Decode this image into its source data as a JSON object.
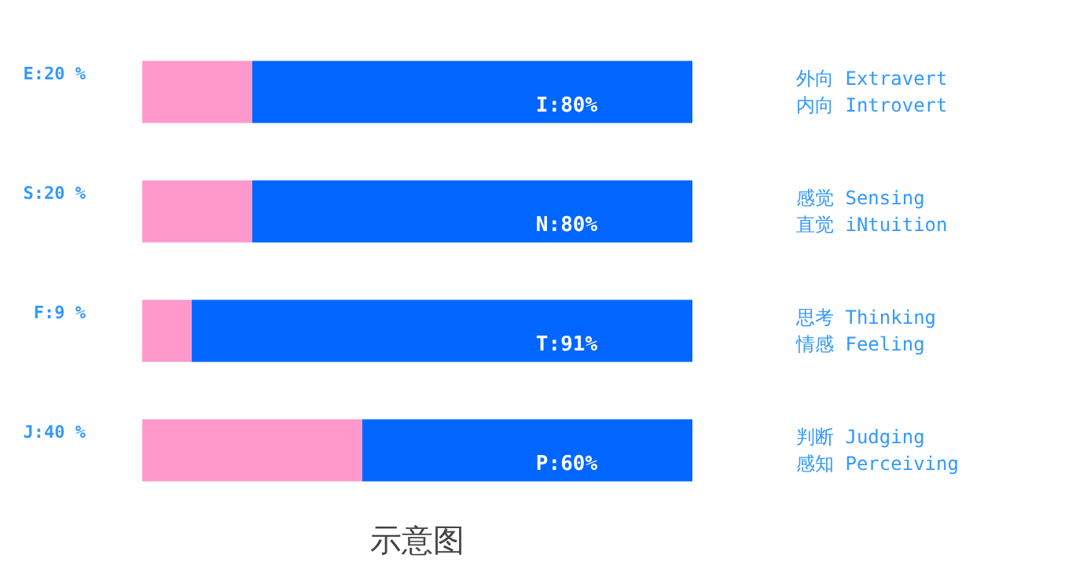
{
  "chart_data": {
    "type": "bar",
    "orientation": "horizontal",
    "stacked": true,
    "title": "示意图",
    "categories": [
      "外向 Extravert\n内向 Introvert",
      "感觉 Sensing\n直觉 iNtuition",
      "思考 Thinking\n情感 Feeling",
      "判断 Judging\n感知 Perceiving"
    ],
    "series": [
      {
        "color": "#ff99cc",
        "values": [
          20,
          20,
          9,
          40
        ],
        "value_labels": [
          "E:20 %",
          "S:20 %",
          "F:9 %",
          "J:40 %"
        ]
      },
      {
        "color": "#0066ff",
        "values": [
          80,
          80,
          91,
          60
        ],
        "value_labels": [
          "I:80%",
          "N:80%",
          "T:91%",
          "P:60%"
        ]
      }
    ],
    "xlim": [
      0,
      100
    ],
    "tick_labels": "y"
  }
}
